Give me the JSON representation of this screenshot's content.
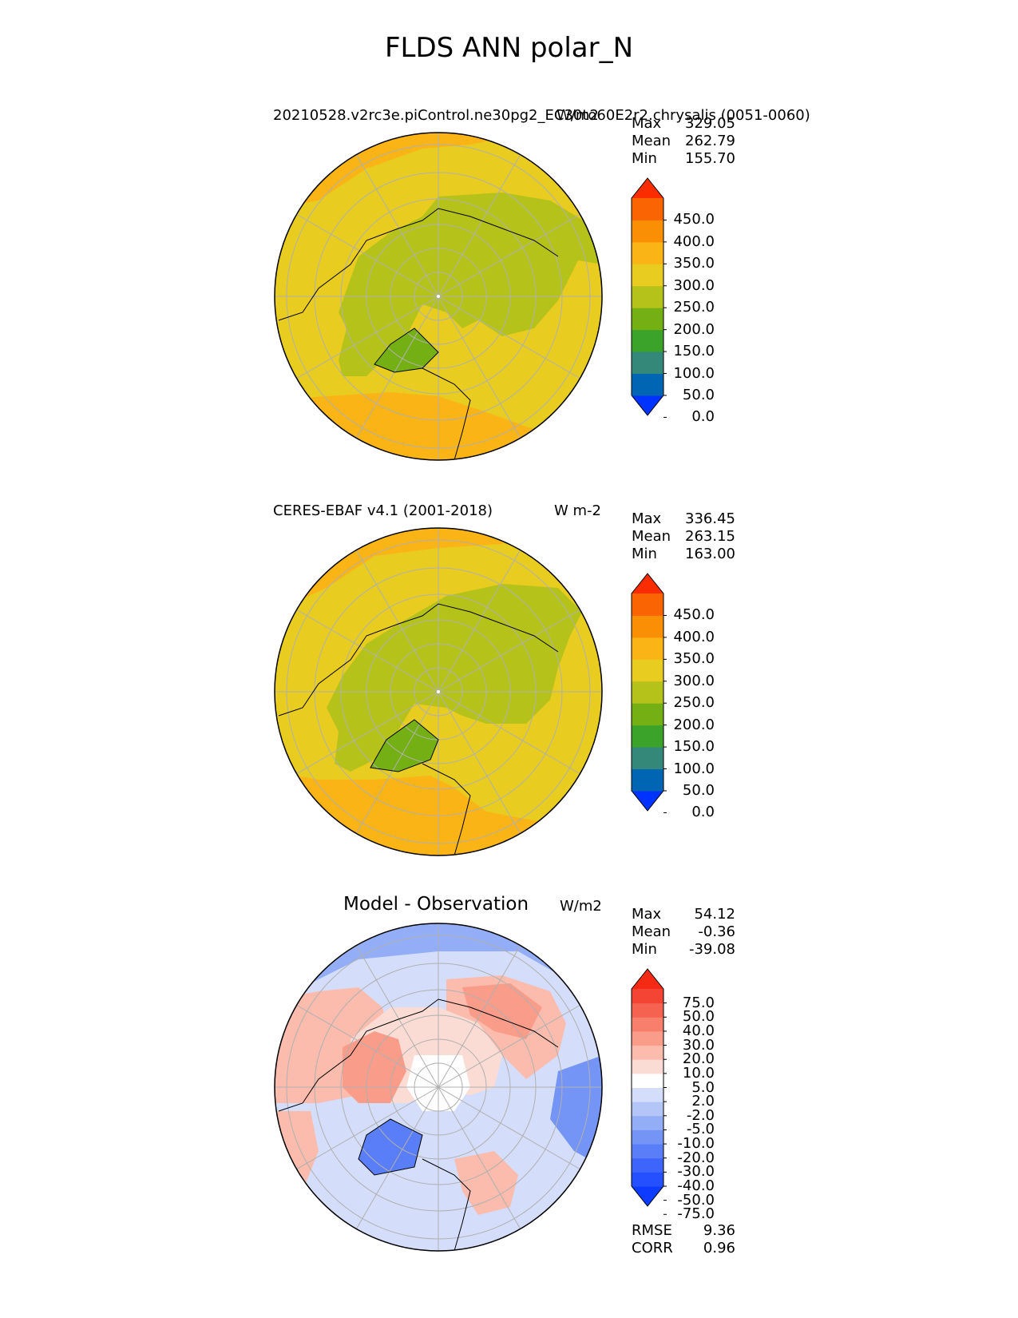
{
  "figure_title": "FLDS ANN polar_N",
  "colors": {
    "abs_levels": [
      "#0033ff",
      "#0066b3",
      "#33887a",
      "#3ba32a",
      "#74b014",
      "#b5c21a",
      "#e8cc20",
      "#fbb415",
      "#fa8f05",
      "#fb6402",
      "#fb2c00"
    ],
    "diff_levels": [
      "#0d3bff",
      "#2450ff",
      "#3d65fb",
      "#5a7ef8",
      "#7595f6",
      "#93adf6",
      "#b3c6f7",
      "#d4defa",
      "#ffffff",
      "#fbdcd4",
      "#fbbcae",
      "#fa9c8a",
      "#f77f6b",
      "#f5624f",
      "#f44433",
      "#f42a15"
    ],
    "land_outline": "#000000",
    "grid": "#b0b0b0"
  },
  "panels": [
    {
      "left_title": "20210528.v2rc3e.piControl.ne30pg2_EC30to60E2r2.chrysalis (0051-0060)",
      "units": "W/m2",
      "stats": {
        "max_label": "Max",
        "max": "329.05",
        "mean_label": "Mean",
        "mean": "262.79",
        "min_label": "Min",
        "min": "155.70"
      },
      "colorbar": {
        "ticks": [
          "450.0",
          "400.0",
          "350.0",
          "300.0",
          "250.0",
          "200.0",
          "150.0",
          "100.0",
          "50.0",
          "0.0"
        ]
      }
    },
    {
      "left_title": "CERES-EBAF v4.1 (2001-2018)",
      "units": "W m-2",
      "stats": {
        "max_label": "Max",
        "max": "336.45",
        "mean_label": "Mean",
        "mean": "263.15",
        "min_label": "Min",
        "min": "163.00"
      },
      "colorbar": {
        "ticks": [
          "450.0",
          "400.0",
          "350.0",
          "300.0",
          "250.0",
          "200.0",
          "150.0",
          "100.0",
          "50.0",
          "0.0"
        ]
      }
    },
    {
      "center_title": "Model - Observation",
      "units": "W/m2",
      "stats": {
        "max_label": "Max",
        "max": "54.12",
        "mean_label": "Mean",
        "mean": "-0.36",
        "min_label": "Min",
        "min": "-39.08"
      },
      "colorbar": {
        "ticks": [
          "75.0",
          "50.0",
          "40.0",
          "30.0",
          "20.0",
          "10.0",
          "5.0",
          "2.0",
          "-2.0",
          "-5.0",
          "-10.0",
          "-20.0",
          "-30.0",
          "-40.0",
          "-50.0",
          "-75.0"
        ]
      },
      "metrics": {
        "rmse_label": "RMSE",
        "rmse": "9.36",
        "corr_label": "CORR",
        "corr": "0.96"
      }
    }
  ]
}
